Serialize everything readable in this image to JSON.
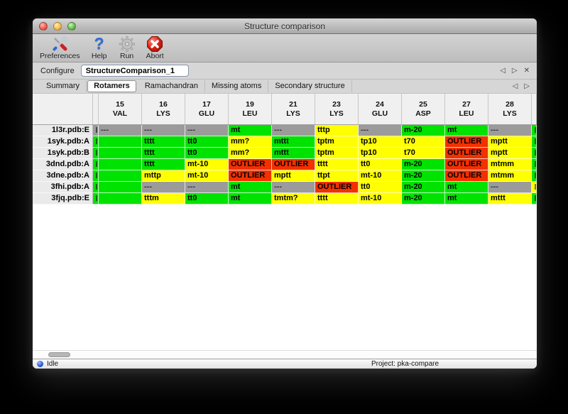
{
  "window": {
    "title": "Structure comparison"
  },
  "toolbar": {
    "items": [
      {
        "label": "Preferences",
        "icon": "tools-icon"
      },
      {
        "label": "Help",
        "icon": "help-icon",
        "glyph": "?"
      },
      {
        "label": "Run",
        "icon": "gear-icon"
      },
      {
        "label": "Abort",
        "icon": "abort-icon"
      }
    ]
  },
  "configure": {
    "label": "Configure",
    "value": "StructureComparison_1"
  },
  "nav_icons": {
    "prev": "◁",
    "next": "▷",
    "close": "✕"
  },
  "tabs": {
    "active": "Rotamers",
    "items": [
      "Summary",
      "Rotamers",
      "Ramachandran",
      "Missing atoms",
      "Secondary structure"
    ]
  },
  "table": {
    "columns": [
      {
        "num": "15",
        "res": "VAL"
      },
      {
        "num": "16",
        "res": "LYS"
      },
      {
        "num": "17",
        "res": "GLU"
      },
      {
        "num": "19",
        "res": "LEU"
      },
      {
        "num": "21",
        "res": "LYS"
      },
      {
        "num": "23",
        "res": "LYS"
      },
      {
        "num": "24",
        "res": "GLU"
      },
      {
        "num": "25",
        "res": "ASP"
      },
      {
        "num": "27",
        "res": "LEU"
      },
      {
        "num": "28",
        "res": "LYS"
      }
    ],
    "rows": [
      {
        "name": "1l3r.pdb:E",
        "left_edge": "na",
        "right_edge": "green",
        "cells": [
          {
            "t": "---",
            "s": "na"
          },
          {
            "t": "---",
            "s": "na"
          },
          {
            "t": "---",
            "s": "na"
          },
          {
            "t": "mt",
            "s": "green"
          },
          {
            "t": "---",
            "s": "na"
          },
          {
            "t": "tttp",
            "s": "yellow"
          },
          {
            "t": "---",
            "s": "na"
          },
          {
            "t": "m-20",
            "s": "green"
          },
          {
            "t": "mt",
            "s": "green"
          },
          {
            "t": "---",
            "s": "na"
          }
        ]
      },
      {
        "name": "1syk.pdb:A",
        "left_edge": "green",
        "right_edge": "green",
        "cells": [
          {
            "t": "",
            "s": "green"
          },
          {
            "t": "tttt",
            "s": "green"
          },
          {
            "t": "tt0",
            "s": "green"
          },
          {
            "t": "mm?",
            "s": "yellow"
          },
          {
            "t": "mttt",
            "s": "green"
          },
          {
            "t": "tptm",
            "s": "yellow"
          },
          {
            "t": "tp10",
            "s": "yellow"
          },
          {
            "t": "t70",
            "s": "yellow"
          },
          {
            "t": "OUTLIER",
            "s": "red"
          },
          {
            "t": "mptt",
            "s": "yellow"
          }
        ]
      },
      {
        "name": "1syk.pdb:B",
        "left_edge": "green",
        "right_edge": "green",
        "cells": [
          {
            "t": "",
            "s": "green"
          },
          {
            "t": "tttt",
            "s": "green"
          },
          {
            "t": "tt0",
            "s": "green"
          },
          {
            "t": "mm?",
            "s": "yellow"
          },
          {
            "t": "mttt",
            "s": "green"
          },
          {
            "t": "tptm",
            "s": "yellow"
          },
          {
            "t": "tp10",
            "s": "yellow"
          },
          {
            "t": "t70",
            "s": "yellow"
          },
          {
            "t": "OUTLIER",
            "s": "red"
          },
          {
            "t": "mptt",
            "s": "yellow"
          }
        ]
      },
      {
        "name": "3dnd.pdb:A",
        "left_edge": "green",
        "right_edge": "green",
        "cells": [
          {
            "t": "",
            "s": "green"
          },
          {
            "t": "tttt",
            "s": "green"
          },
          {
            "t": "mt-10",
            "s": "yellow"
          },
          {
            "t": "OUTLIER",
            "s": "red"
          },
          {
            "t": "OUTLIER",
            "s": "red"
          },
          {
            "t": "tttt",
            "s": "yellow"
          },
          {
            "t": "tt0",
            "s": "yellow"
          },
          {
            "t": "m-20",
            "s": "green"
          },
          {
            "t": "OUTLIER",
            "s": "red"
          },
          {
            "t": "mtmm",
            "s": "yellow"
          }
        ]
      },
      {
        "name": "3dne.pdb:A",
        "left_edge": "green",
        "right_edge": "green",
        "cells": [
          {
            "t": "",
            "s": "green"
          },
          {
            "t": "mttp",
            "s": "yellow"
          },
          {
            "t": "mt-10",
            "s": "yellow"
          },
          {
            "t": "OUTLIER",
            "s": "red"
          },
          {
            "t": "mptt",
            "s": "yellow"
          },
          {
            "t": "ttpt",
            "s": "yellow"
          },
          {
            "t": "mt-10",
            "s": "yellow"
          },
          {
            "t": "m-20",
            "s": "green"
          },
          {
            "t": "OUTLIER",
            "s": "red"
          },
          {
            "t": "mtmm",
            "s": "yellow"
          }
        ]
      },
      {
        "name": "3fhi.pdb:A",
        "left_edge": "green",
        "right_edge": "yellow",
        "cells": [
          {
            "t": "",
            "s": "green"
          },
          {
            "t": "---",
            "s": "na"
          },
          {
            "t": "---",
            "s": "na"
          },
          {
            "t": "mt",
            "s": "green"
          },
          {
            "t": "---",
            "s": "na"
          },
          {
            "t": "OUTLIER",
            "s": "red"
          },
          {
            "t": "tt0",
            "s": "yellow"
          },
          {
            "t": "m-20",
            "s": "green"
          },
          {
            "t": "mt",
            "s": "green"
          },
          {
            "t": "---",
            "s": "na"
          }
        ]
      },
      {
        "name": "3fjq.pdb:E",
        "left_edge": "green",
        "right_edge": "green",
        "cells": [
          {
            "t": "",
            "s": "green"
          },
          {
            "t": "tttm",
            "s": "yellow"
          },
          {
            "t": "tt0",
            "s": "green"
          },
          {
            "t": "mt",
            "s": "green"
          },
          {
            "t": "tmtm?",
            "s": "yellow"
          },
          {
            "t": "tttt",
            "s": "yellow"
          },
          {
            "t": "mt-10",
            "s": "yellow"
          },
          {
            "t": "m-20",
            "s": "green"
          },
          {
            "t": "mt",
            "s": "green"
          },
          {
            "t": "mttt",
            "s": "yellow"
          }
        ]
      }
    ]
  },
  "colors": {
    "green": "#00e300",
    "yellow": "#ffff00",
    "red": "#f23000",
    "na": "#9b9b9b"
  },
  "statusbar": {
    "status": "Idle",
    "project": "Project: pka-compare"
  }
}
